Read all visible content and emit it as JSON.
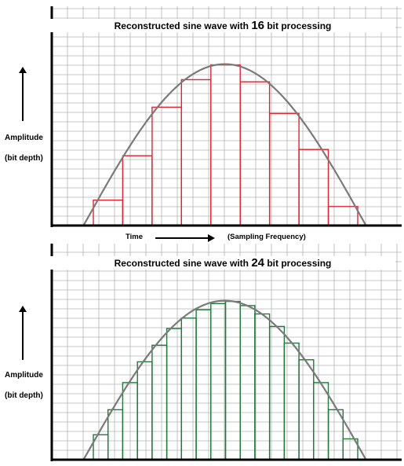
{
  "panel_top": {
    "title_prefix": "Reconstructed sine wave with ",
    "title_bits": "16",
    "title_suffix": " bit processing",
    "step_color": "#e0242f",
    "curve_color": "#7a7a7a",
    "steps": [
      0.12,
      0.33,
      0.56,
      0.69,
      0.76,
      0.68,
      0.53,
      0.36,
      0.09
    ]
  },
  "panel_bottom": {
    "title_prefix": "Reconstructed sine wave with ",
    "title_bits": "24",
    "title_suffix": " bit processing",
    "step_color": "#1f7a3a",
    "curve_color": "#7a7a7a",
    "steps": [
      0.12,
      0.24,
      0.37,
      0.47,
      0.55,
      0.63,
      0.68,
      0.72,
      0.75,
      0.76,
      0.74,
      0.7,
      0.64,
      0.56,
      0.48,
      0.37,
      0.24,
      0.1
    ]
  },
  "y_axis": {
    "label": "Amplitude",
    "sublabel": "(bit depth)"
  },
  "x_axis": {
    "label": "Time",
    "sublabel": "(Sampling Frequency)"
  }
}
